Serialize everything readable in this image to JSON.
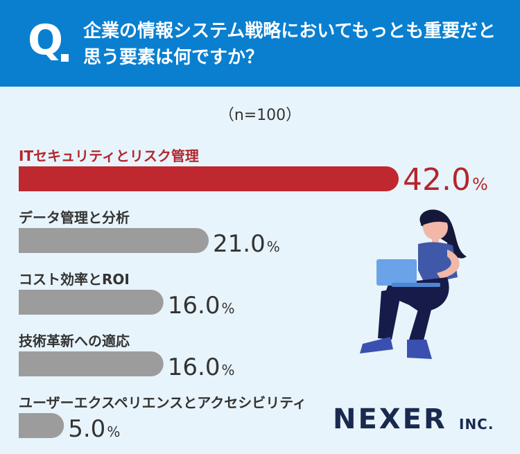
{
  "header": {
    "q_mark": "Q",
    "question": "企業の情報システム戦略においてもっとも重要だと思う要素は何ですか？"
  },
  "sample": "（n=100）",
  "chart_data": {
    "type": "bar",
    "orientation": "horizontal",
    "categories": [
      "ITセキュリティとリスク管理",
      "データ管理と分析",
      "コスト効率とROI",
      "技術革新への適応",
      "ユーザーエクスペリエンスとアクセシビリティ"
    ],
    "values": [
      42.0,
      21.0,
      16.0,
      16.0,
      5.0
    ],
    "value_labels": [
      "42.0",
      "21.0",
      "16.0",
      "16.0",
      "5.0"
    ],
    "unit": "%",
    "xlim": [
      0,
      42
    ],
    "highlight_index": 0,
    "colors": {
      "highlight": "#c0282f",
      "default": "#9c9c9c",
      "label_highlight": "#b3262d",
      "label_default": "#333333"
    }
  },
  "logo": {
    "main": "NEXER",
    "suffix": "INC."
  },
  "colors": {
    "header": "#0a7fd0",
    "background": "#e8f4fb"
  }
}
